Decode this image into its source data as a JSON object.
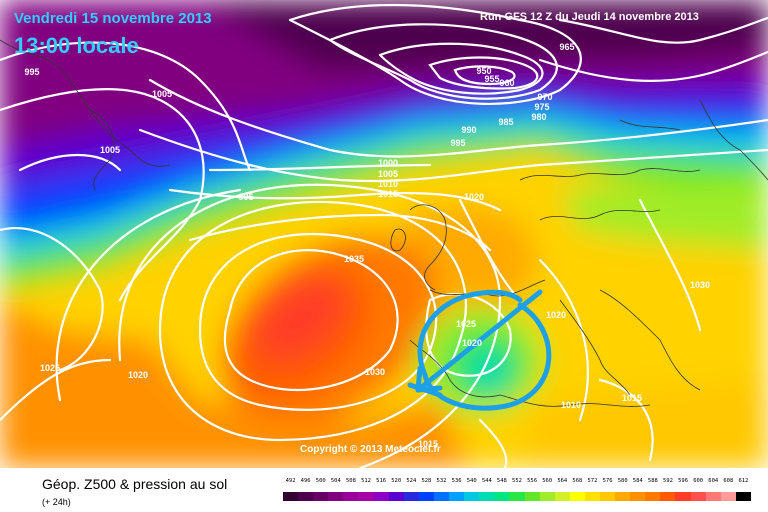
{
  "header": {
    "date": "Vendredi 15 novembre 2013",
    "local_time": "13:00 locale",
    "run": "Run GFS 12 Z du Jeudi 14 novembre 2013"
  },
  "copyright": "Copyright © 2013 Meteociel.fr",
  "footer": {
    "title": "Géop. Z500 & pression au sol",
    "subtitle": "(+ 24h)"
  },
  "legend": {
    "values": [
      "492",
      "496",
      "500",
      "504",
      "508",
      "512",
      "516",
      "520",
      "524",
      "528",
      "532",
      "536",
      "540",
      "544",
      "548",
      "552",
      "556",
      "560",
      "564",
      "568",
      "572",
      "576",
      "580",
      "584",
      "588",
      "592",
      "596",
      "600",
      "604",
      "608",
      "612"
    ],
    "colors": [
      "#330033",
      "#4d004d",
      "#660066",
      "#800080",
      "#990099",
      "#a600a6",
      "#8c00c8",
      "#5a00d2",
      "#2828dc",
      "#0040ff",
      "#0070ff",
      "#00a0ff",
      "#00c8e0",
      "#00dcb4",
      "#00e682",
      "#28e646",
      "#64e628",
      "#a0ec28",
      "#d2f028",
      "#ffff00",
      "#ffe100",
      "#ffc800",
      "#ffaa00",
      "#ff9100",
      "#ff7800",
      "#ff5a00",
      "#ff3c28",
      "#ff5050",
      "#ff7878",
      "#ff9b9b",
      "#000000"
    ]
  },
  "isobar_labels": [
    {
      "text": "995",
      "role": "nw"
    },
    {
      "text": "1005",
      "role": "n-greenland"
    },
    {
      "text": "1005",
      "role": "w-greenland"
    },
    {
      "text": "995",
      "role": "atlantic"
    },
    {
      "text": "965",
      "role": "low-ne"
    },
    {
      "text": "950",
      "role": "low-center"
    },
    {
      "text": "955",
      "role": "low-center2"
    },
    {
      "text": "960",
      "role": "low-center3"
    },
    {
      "text": "970",
      "role": "low-s1"
    },
    {
      "text": "975",
      "role": "low-s2"
    },
    {
      "text": "980",
      "role": "low-s3"
    },
    {
      "text": "985",
      "role": "low-s4"
    },
    {
      "text": "990",
      "role": "low-s5"
    },
    {
      "text": "995",
      "role": "low-s6"
    },
    {
      "text": "1000",
      "role": "uk1"
    },
    {
      "text": "1005",
      "role": "uk2"
    },
    {
      "text": "1010",
      "role": "uk3"
    },
    {
      "text": "1015",
      "role": "uk4"
    },
    {
      "text": "1020",
      "role": "north-sea"
    },
    {
      "text": "1035",
      "role": "high"
    },
    {
      "text": "1030",
      "role": "high-s"
    },
    {
      "text": "1025",
      "role": "west"
    },
    {
      "text": "1020",
      "role": "west2"
    },
    {
      "text": "1025",
      "role": "iberia1"
    },
    {
      "text": "1020",
      "role": "iberia2"
    },
    {
      "text": "1020",
      "role": "alps"
    },
    {
      "text": "1030",
      "role": "east"
    },
    {
      "text": "1010",
      "role": "med"
    },
    {
      "text": "1015",
      "role": "balkan"
    },
    {
      "text": "1015",
      "role": "africa"
    }
  ]
}
